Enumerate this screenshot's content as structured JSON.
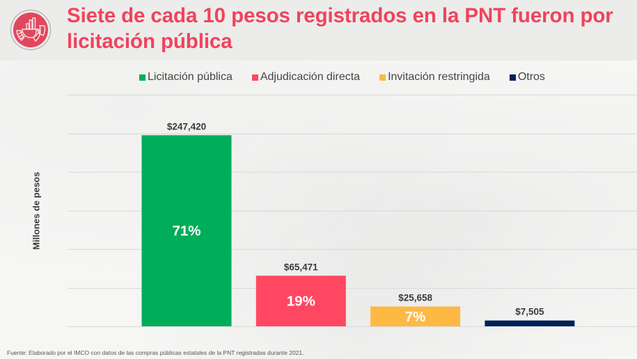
{
  "header": {
    "title": "Siete de cada 10 pesos registrados en la PNT fueron por licitación pública",
    "logo_icon": "chart-pie-bars-icon",
    "title_color": "#f0435c"
  },
  "legend": [
    {
      "label": "Licitación pública",
      "color": "#00ad5b"
    },
    {
      "label": "Adjudicación directa",
      "color": "#ff4762"
    },
    {
      "label": "Invitación restringida",
      "color": "#fdb944"
    },
    {
      "label": "Otros",
      "color": "#002058"
    }
  ],
  "chart_data": {
    "type": "bar",
    "title": "Siete de cada 10 pesos registrados en la PNT fueron por licitación pública",
    "xlabel": "",
    "ylabel": "Millones de pesos",
    "categories": [
      "Licitación pública",
      "Adjudicación directa",
      "Invitación restringida",
      "Otros"
    ],
    "values": [
      247420,
      65471,
      25658,
      7505
    ],
    "value_labels": [
      "$247,420",
      "$65,471",
      "$25,658",
      "$7,505"
    ],
    "percent_labels": [
      "71%",
      "19%",
      "7%",
      ""
    ],
    "colors": [
      "#00ad5b",
      "#ff4762",
      "#fdb944",
      "#002058"
    ],
    "ylim": [
      0,
      300000
    ],
    "ytick_step": 50000,
    "grid": true,
    "y_tick_labels_visible": false,
    "legend_position": "top"
  },
  "footer": {
    "source": "Fuente: Elaborado por el IMCO con datos de las compras públicas estatales de la PNT registradas durante 2021."
  }
}
